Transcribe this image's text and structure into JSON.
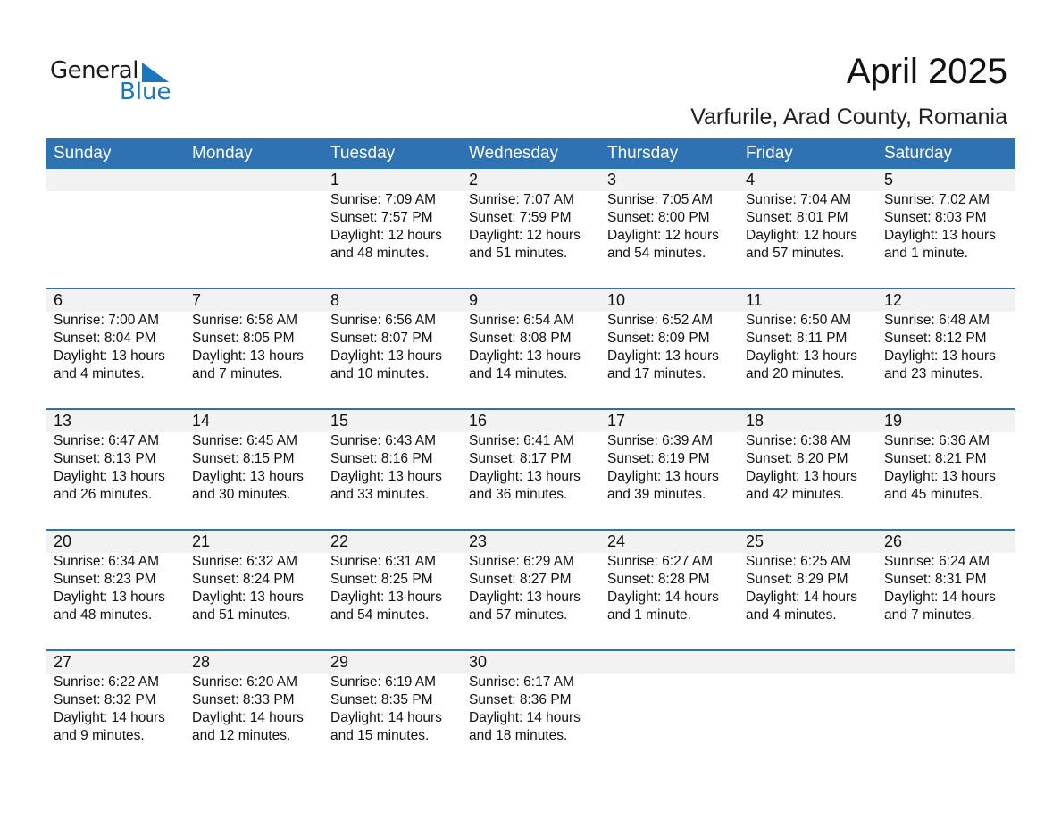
{
  "logo": {
    "text1": "General",
    "text2": "Blue",
    "accent": "#1976c0"
  },
  "title": "April 2025",
  "subtitle": "Varfurile, Arad County, Romania",
  "header_color": "#2E72B4",
  "days": [
    "Sunday",
    "Monday",
    "Tuesday",
    "Wednesday",
    "Thursday",
    "Friday",
    "Saturday"
  ],
  "weeks": [
    [
      null,
      null,
      {
        "day": "1",
        "sunrise": "Sunrise: 7:09 AM",
        "sunset": "Sunset: 7:57 PM",
        "daylight1": "Daylight: 12 hours",
        "daylight2": "and 48 minutes."
      },
      {
        "day": "2",
        "sunrise": "Sunrise: 7:07 AM",
        "sunset": "Sunset: 7:59 PM",
        "daylight1": "Daylight: 12 hours",
        "daylight2": "and 51 minutes."
      },
      {
        "day": "3",
        "sunrise": "Sunrise: 7:05 AM",
        "sunset": "Sunset: 8:00 PM",
        "daylight1": "Daylight: 12 hours",
        "daylight2": "and 54 minutes."
      },
      {
        "day": "4",
        "sunrise": "Sunrise: 7:04 AM",
        "sunset": "Sunset: 8:01 PM",
        "daylight1": "Daylight: 12 hours",
        "daylight2": "and 57 minutes."
      },
      {
        "day": "5",
        "sunrise": "Sunrise: 7:02 AM",
        "sunset": "Sunset: 8:03 PM",
        "daylight1": "Daylight: 13 hours",
        "daylight2": "and 1 minute."
      }
    ],
    [
      {
        "day": "6",
        "sunrise": "Sunrise: 7:00 AM",
        "sunset": "Sunset: 8:04 PM",
        "daylight1": "Daylight: 13 hours",
        "daylight2": "and 4 minutes."
      },
      {
        "day": "7",
        "sunrise": "Sunrise: 6:58 AM",
        "sunset": "Sunset: 8:05 PM",
        "daylight1": "Daylight: 13 hours",
        "daylight2": "and 7 minutes."
      },
      {
        "day": "8",
        "sunrise": "Sunrise: 6:56 AM",
        "sunset": "Sunset: 8:07 PM",
        "daylight1": "Daylight: 13 hours",
        "daylight2": "and 10 minutes."
      },
      {
        "day": "9",
        "sunrise": "Sunrise: 6:54 AM",
        "sunset": "Sunset: 8:08 PM",
        "daylight1": "Daylight: 13 hours",
        "daylight2": "and 14 minutes."
      },
      {
        "day": "10",
        "sunrise": "Sunrise: 6:52 AM",
        "sunset": "Sunset: 8:09 PM",
        "daylight1": "Daylight: 13 hours",
        "daylight2": "and 17 minutes."
      },
      {
        "day": "11",
        "sunrise": "Sunrise: 6:50 AM",
        "sunset": "Sunset: 8:11 PM",
        "daylight1": "Daylight: 13 hours",
        "daylight2": "and 20 minutes."
      },
      {
        "day": "12",
        "sunrise": "Sunrise: 6:48 AM",
        "sunset": "Sunset: 8:12 PM",
        "daylight1": "Daylight: 13 hours",
        "daylight2": "and 23 minutes."
      }
    ],
    [
      {
        "day": "13",
        "sunrise": "Sunrise: 6:47 AM",
        "sunset": "Sunset: 8:13 PM",
        "daylight1": "Daylight: 13 hours",
        "daylight2": "and 26 minutes."
      },
      {
        "day": "14",
        "sunrise": "Sunrise: 6:45 AM",
        "sunset": "Sunset: 8:15 PM",
        "daylight1": "Daylight: 13 hours",
        "daylight2": "and 30 minutes."
      },
      {
        "day": "15",
        "sunrise": "Sunrise: 6:43 AM",
        "sunset": "Sunset: 8:16 PM",
        "daylight1": "Daylight: 13 hours",
        "daylight2": "and 33 minutes."
      },
      {
        "day": "16",
        "sunrise": "Sunrise: 6:41 AM",
        "sunset": "Sunset: 8:17 PM",
        "daylight1": "Daylight: 13 hours",
        "daylight2": "and 36 minutes."
      },
      {
        "day": "17",
        "sunrise": "Sunrise: 6:39 AM",
        "sunset": "Sunset: 8:19 PM",
        "daylight1": "Daylight: 13 hours",
        "daylight2": "and 39 minutes."
      },
      {
        "day": "18",
        "sunrise": "Sunrise: 6:38 AM",
        "sunset": "Sunset: 8:20 PM",
        "daylight1": "Daylight: 13 hours",
        "daylight2": "and 42 minutes."
      },
      {
        "day": "19",
        "sunrise": "Sunrise: 6:36 AM",
        "sunset": "Sunset: 8:21 PM",
        "daylight1": "Daylight: 13 hours",
        "daylight2": "and 45 minutes."
      }
    ],
    [
      {
        "day": "20",
        "sunrise": "Sunrise: 6:34 AM",
        "sunset": "Sunset: 8:23 PM",
        "daylight1": "Daylight: 13 hours",
        "daylight2": "and 48 minutes."
      },
      {
        "day": "21",
        "sunrise": "Sunrise: 6:32 AM",
        "sunset": "Sunset: 8:24 PM",
        "daylight1": "Daylight: 13 hours",
        "daylight2": "and 51 minutes."
      },
      {
        "day": "22",
        "sunrise": "Sunrise: 6:31 AM",
        "sunset": "Sunset: 8:25 PM",
        "daylight1": "Daylight: 13 hours",
        "daylight2": "and 54 minutes."
      },
      {
        "day": "23",
        "sunrise": "Sunrise: 6:29 AM",
        "sunset": "Sunset: 8:27 PM",
        "daylight1": "Daylight: 13 hours",
        "daylight2": "and 57 minutes."
      },
      {
        "day": "24",
        "sunrise": "Sunrise: 6:27 AM",
        "sunset": "Sunset: 8:28 PM",
        "daylight1": "Daylight: 14 hours",
        "daylight2": "and 1 minute."
      },
      {
        "day": "25",
        "sunrise": "Sunrise: 6:25 AM",
        "sunset": "Sunset: 8:29 PM",
        "daylight1": "Daylight: 14 hours",
        "daylight2": "and 4 minutes."
      },
      {
        "day": "26",
        "sunrise": "Sunrise: 6:24 AM",
        "sunset": "Sunset: 8:31 PM",
        "daylight1": "Daylight: 14 hours",
        "daylight2": "and 7 minutes."
      }
    ],
    [
      {
        "day": "27",
        "sunrise": "Sunrise: 6:22 AM",
        "sunset": "Sunset: 8:32 PM",
        "daylight1": "Daylight: 14 hours",
        "daylight2": "and 9 minutes."
      },
      {
        "day": "28",
        "sunrise": "Sunrise: 6:20 AM",
        "sunset": "Sunset: 8:33 PM",
        "daylight1": "Daylight: 14 hours",
        "daylight2": "and 12 minutes."
      },
      {
        "day": "29",
        "sunrise": "Sunrise: 6:19 AM",
        "sunset": "Sunset: 8:35 PM",
        "daylight1": "Daylight: 14 hours",
        "daylight2": "and 15 minutes."
      },
      {
        "day": "30",
        "sunrise": "Sunrise: 6:17 AM",
        "sunset": "Sunset: 8:36 PM",
        "daylight1": "Daylight: 14 hours",
        "daylight2": "and 18 minutes."
      },
      null,
      null,
      null
    ]
  ]
}
